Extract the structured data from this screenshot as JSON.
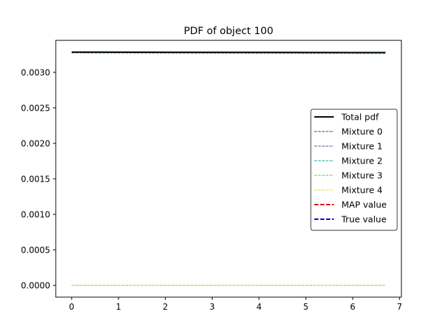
{
  "chart_data": {
    "type": "line",
    "title": "PDF of object 100",
    "xlabel": "",
    "ylabel": "",
    "xlim": [
      -0.34,
      7.04
    ],
    "ylim": [
      -0.000165,
      0.00345
    ],
    "xticks": [
      0,
      1,
      2,
      3,
      4,
      5,
      6,
      7
    ],
    "xtick_labels": [
      "0",
      "1",
      "2",
      "3",
      "4",
      "5",
      "6",
      "7"
    ],
    "yticks": [
      0.0,
      0.0005,
      0.001,
      0.0015,
      0.002,
      0.0025,
      0.003
    ],
    "ytick_labels": [
      "0.0000",
      "0.0005",
      "0.0010",
      "0.0015",
      "0.0020",
      "0.0025",
      "0.0030"
    ],
    "grid": false,
    "legend_position": "center-right",
    "series": [
      {
        "name": "Total pdf",
        "color": "#000000",
        "dash": "solid",
        "width": "thick",
        "x": [
          0,
          6.7
        ],
        "y": [
          0.003285,
          0.003278
        ]
      },
      {
        "name": "Mixture 0",
        "color": "#7a1f6e",
        "dash": "dashed",
        "width": "thin",
        "x": [
          0,
          6.7
        ],
        "y": [
          0.0,
          0.0
        ]
      },
      {
        "name": "Mixture 1",
        "color": "#3b5b8c",
        "dash": "dashed",
        "width": "thin",
        "x": [
          0,
          6.7
        ],
        "y": [
          0.003275,
          0.003268
        ]
      },
      {
        "name": "Mixture 2",
        "color": "#1f9e9e",
        "dash": "dashed",
        "width": "thin",
        "x": [
          0,
          6.7
        ],
        "y": [
          0.003272,
          0.003265
        ]
      },
      {
        "name": "Mixture 3",
        "color": "#6cc24a",
        "dash": "dashed",
        "width": "thin",
        "x": [
          0,
          6.7
        ],
        "y": [
          0.0,
          0.0
        ]
      },
      {
        "name": "Mixture 4",
        "color": "#f2d93a",
        "dash": "dashed",
        "width": "thin",
        "x": [
          0,
          6.7
        ],
        "y": [
          0.0,
          0.0
        ]
      },
      {
        "name": "MAP value",
        "color": "#e00000",
        "dash": "dashed",
        "width": "thick",
        "x": [],
        "y": []
      },
      {
        "name": "True value",
        "color": "#0000e0",
        "dash": "dashed",
        "width": "thick",
        "x": [],
        "y": []
      }
    ]
  }
}
